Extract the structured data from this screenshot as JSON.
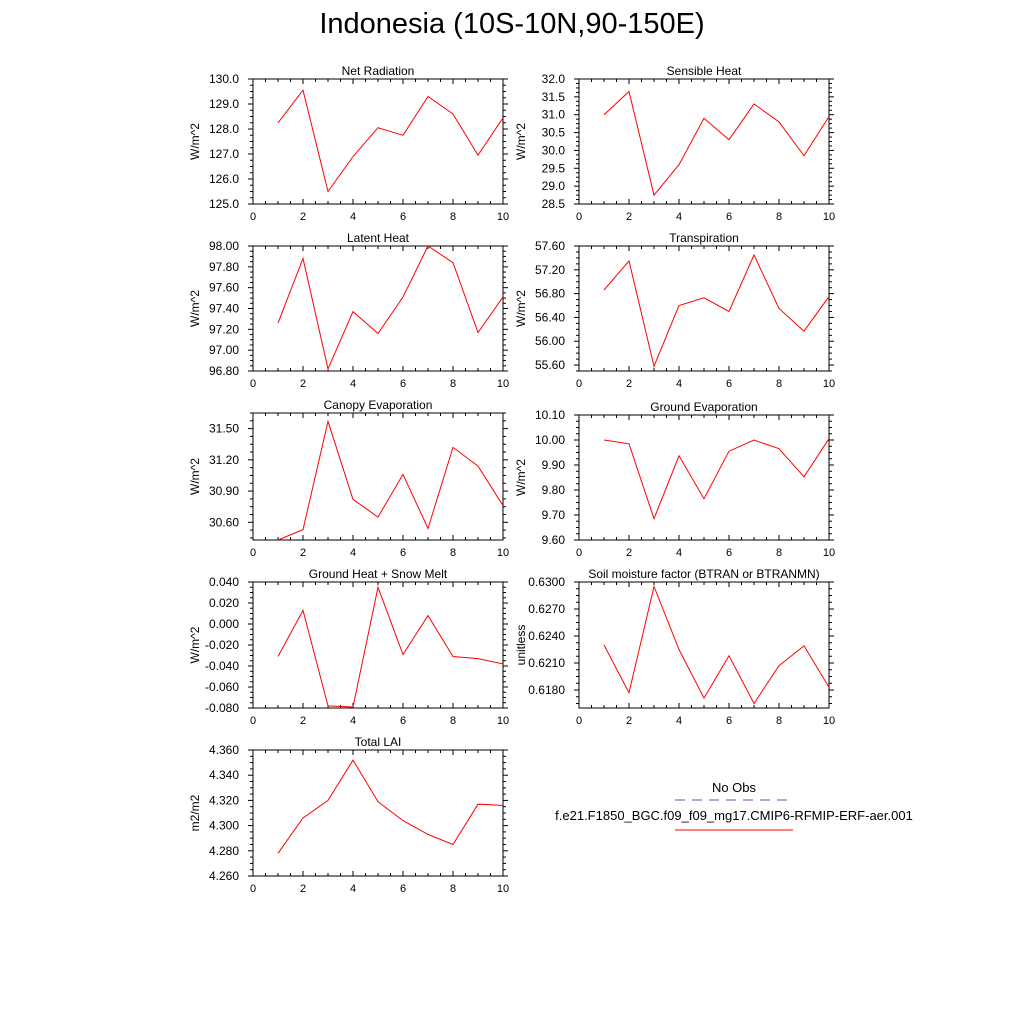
{
  "title": "Indonesia (10S-10N,90-150E)",
  "legend": {
    "obs_label": "No Obs",
    "obs_color": "#5555aa",
    "case_label": "f.e21.F1850_BGC.f09_f09_mg17.CMIP6-RFMIP-ERF-aer.001",
    "case_color": "#ff0000"
  },
  "chart_data": [
    {
      "type": "line",
      "title": "Net Radiation",
      "ylabel": "W/m^2",
      "x": [
        1,
        2,
        3,
        4,
        5,
        6,
        7,
        8,
        9,
        10
      ],
      "values": [
        128.25,
        129.55,
        125.5,
        126.9,
        128.05,
        127.75,
        129.3,
        128.6,
        126.95,
        128.45
      ],
      "xlim": [
        0,
        10
      ],
      "ylim": [
        125.0,
        130.0
      ],
      "xticks": [
        0,
        2,
        4,
        6,
        8,
        10
      ],
      "xtick_labels": [
        "0",
        "2",
        "4",
        "6",
        "8",
        "10"
      ],
      "yticks": [
        125,
        126,
        127,
        128,
        129,
        130
      ],
      "ytick_labels": [
        "125.0",
        "126.0",
        "127.0",
        "128.0",
        "129.0",
        "130.0"
      ]
    },
    {
      "type": "line",
      "title": "Sensible Heat",
      "ylabel": "W/m^2",
      "x": [
        1,
        2,
        3,
        4,
        5,
        6,
        7,
        8,
        9,
        10
      ],
      "values": [
        31.0,
        31.65,
        28.75,
        29.6,
        30.9,
        30.3,
        31.3,
        30.8,
        29.85,
        30.95
      ],
      "xlim": [
        0,
        10
      ],
      "ylim": [
        28.5,
        32.0
      ],
      "xticks": [
        0,
        2,
        4,
        6,
        8,
        10
      ],
      "xtick_labels": [
        "0",
        "2",
        "4",
        "6",
        "8",
        "10"
      ],
      "yticks": [
        28.5,
        29.0,
        29.5,
        30.0,
        30.5,
        31.0,
        31.5,
        32.0
      ],
      "ytick_labels": [
        "28.5",
        "29.0",
        "29.5",
        "30.0",
        "30.5",
        "31.0",
        "31.5",
        "32.0"
      ]
    },
    {
      "type": "line",
      "title": "Latent Heat",
      "ylabel": "W/m^2",
      "x": [
        1,
        2,
        3,
        4,
        5,
        6,
        7,
        8,
        9,
        10
      ],
      "values": [
        97.26,
        97.88,
        96.82,
        97.37,
        97.16,
        97.51,
        98.0,
        97.84,
        97.17,
        97.51
      ],
      "xlim": [
        0,
        10
      ],
      "ylim": [
        96.8,
        98.0
      ],
      "xticks": [
        0,
        2,
        4,
        6,
        8,
        10
      ],
      "xtick_labels": [
        "0",
        "2",
        "4",
        "6",
        "8",
        "10"
      ],
      "yticks": [
        96.8,
        97.0,
        97.2,
        97.4,
        97.6,
        97.8,
        98.0
      ],
      "ytick_labels": [
        "96.80",
        "97.00",
        "97.20",
        "97.40",
        "97.60",
        "97.80",
        "98.00"
      ]
    },
    {
      "type": "line",
      "title": "Transpiration",
      "ylabel": "W/m^2",
      "x": [
        1,
        2,
        3,
        4,
        5,
        6,
        7,
        8,
        9,
        10
      ],
      "values": [
        56.86,
        57.35,
        55.58,
        56.6,
        56.73,
        56.5,
        57.45,
        56.55,
        56.17,
        56.75
      ],
      "xlim": [
        0,
        10
      ],
      "ylim": [
        55.5,
        57.6
      ],
      "xticks": [
        0,
        2,
        4,
        6,
        8,
        10
      ],
      "xtick_labels": [
        "0",
        "2",
        "4",
        "6",
        "8",
        "10"
      ],
      "yticks": [
        55.6,
        56.0,
        56.4,
        56.8,
        57.2,
        57.6
      ],
      "ytick_labels": [
        "55.60",
        "56.00",
        "56.40",
        "56.80",
        "57.20",
        "57.60"
      ]
    },
    {
      "type": "line",
      "title": "Canopy Evaporation",
      "ylabel": "W/m^2",
      "x": [
        1,
        2,
        3,
        4,
        5,
        6,
        7,
        8,
        9,
        10
      ],
      "values": [
        30.43,
        30.53,
        31.57,
        30.82,
        30.65,
        31.06,
        30.54,
        31.32,
        31.14,
        30.76
      ],
      "xlim": [
        0,
        10
      ],
      "ylim": [
        30.43,
        31.65
      ],
      "xticks": [
        0,
        2,
        4,
        6,
        8,
        10
      ],
      "xtick_labels": [
        "0",
        "2",
        "4",
        "6",
        "8",
        "10"
      ],
      "yticks": [
        30.6,
        30.9,
        31.2,
        31.5
      ],
      "ytick_labels": [
        "30.60",
        "30.90",
        "31.20",
        "31.50"
      ]
    },
    {
      "type": "line",
      "title": "Ground Evaporation",
      "ylabel": "W/m^2",
      "x": [
        1,
        2,
        3,
        4,
        5,
        6,
        7,
        8,
        9,
        10
      ],
      "values": [
        10.0,
        9.985,
        9.685,
        9.937,
        9.765,
        9.955,
        10.0,
        9.965,
        9.853,
        10.005
      ],
      "xlim": [
        0,
        10
      ],
      "ylim": [
        9.6,
        10.1
      ],
      "xticks": [
        0,
        2,
        4,
        6,
        8,
        10
      ],
      "xtick_labels": [
        "0",
        "2",
        "4",
        "6",
        "8",
        "10"
      ],
      "yticks": [
        9.6,
        9.7,
        9.8,
        9.9,
        10.0,
        10.1
      ],
      "ytick_labels": [
        "9.60",
        "9.70",
        "9.80",
        "9.90",
        "10.00",
        "10.10"
      ]
    },
    {
      "type": "line",
      "title": "Ground Heat + Snow Melt",
      "ylabel": "W/m^2",
      "x": [
        1,
        2,
        3,
        4,
        5,
        6,
        7,
        8,
        9,
        10
      ],
      "values": [
        -0.031,
        0.013,
        -0.078,
        -0.079,
        0.035,
        -0.029,
        0.008,
        -0.031,
        -0.033,
        -0.038
      ],
      "xlim": [
        0,
        10
      ],
      "ylim": [
        -0.08,
        0.04
      ],
      "xticks": [
        0,
        2,
        4,
        6,
        8,
        10
      ],
      "xtick_labels": [
        "0",
        "2",
        "4",
        "6",
        "8",
        "10"
      ],
      "yticks": [
        -0.08,
        -0.06,
        -0.04,
        -0.02,
        0.0,
        0.02,
        0.04
      ],
      "ytick_labels": [
        "-0.080",
        "-0.060",
        "-0.040",
        "-0.020",
        "0.000",
        "0.020",
        "0.040"
      ]
    },
    {
      "type": "line",
      "title": "Soil moisture factor (BTRAN or BTRANMN)",
      "ylabel": "unitless",
      "x": [
        1,
        2,
        3,
        4,
        5,
        6,
        7,
        8,
        9,
        10
      ],
      "values": [
        0.623,
        0.6177,
        0.6295,
        0.6225,
        0.6171,
        0.6218,
        0.6165,
        0.6207,
        0.6229,
        0.6183
      ],
      "xlim": [
        0,
        10
      ],
      "ylim": [
        0.616,
        0.63
      ],
      "xticks": [
        0,
        2,
        4,
        6,
        8,
        10
      ],
      "xtick_labels": [
        "0",
        "2",
        "4",
        "6",
        "8",
        "10"
      ],
      "yticks": [
        0.618,
        0.621,
        0.624,
        0.627,
        0.63
      ],
      "ytick_labels": [
        "0.6180",
        "0.6210",
        "0.6240",
        "0.6270",
        "0.6300"
      ]
    },
    {
      "type": "line",
      "title": "Total LAI",
      "ylabel": "m2/m2",
      "x": [
        1,
        2,
        3,
        4,
        5,
        6,
        7,
        8,
        9,
        10
      ],
      "values": [
        4.278,
        4.306,
        4.32,
        4.352,
        4.319,
        4.304,
        4.293,
        4.285,
        4.317,
        4.316
      ],
      "xlim": [
        0,
        10
      ],
      "ylim": [
        4.26,
        4.36
      ],
      "xticks": [
        0,
        2,
        4,
        6,
        8,
        10
      ],
      "xtick_labels": [
        "0",
        "2",
        "4",
        "6",
        "8",
        "10"
      ],
      "yticks": [
        4.26,
        4.28,
        4.3,
        4.32,
        4.34,
        4.36
      ],
      "ytick_labels": [
        "4.260",
        "4.280",
        "4.300",
        "4.320",
        "4.340",
        "4.360"
      ]
    }
  ]
}
